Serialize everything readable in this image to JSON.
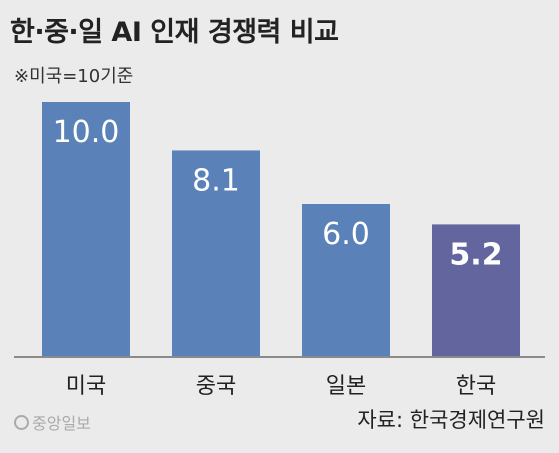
{
  "header": {
    "title": "한·중·일 AI 인재 경쟁력 비교",
    "subtitle": "※미국=10기준"
  },
  "footer": {
    "logo_text": "중앙일보",
    "source": "자료: 한국경제연구원"
  },
  "colors": {
    "background": "#ebebeb",
    "bar": "#5a82b8",
    "bar_highlight": "#62659e",
    "baseline": "#8a8a8a"
  },
  "chart_data": {
    "type": "bar",
    "categories": [
      "미국",
      "중국",
      "일본",
      "한국"
    ],
    "values": [
      10.0,
      8.1,
      6.0,
      5.2
    ],
    "value_labels": [
      "10.0",
      "8.1",
      "6.0",
      "5.2"
    ],
    "highlight_index": 3,
    "ylim": [
      0,
      10
    ],
    "grid": false,
    "legend": "none"
  }
}
